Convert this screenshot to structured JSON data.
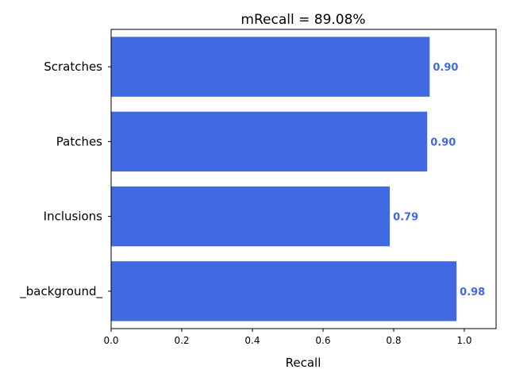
{
  "chart_data": {
    "type": "bar",
    "orientation": "horizontal",
    "title": "mRecall = 89.08%",
    "xlabel": "Recall",
    "ylabel": "",
    "categories": [
      "Scratches",
      "Patches",
      "Inclusions",
      "_background_"
    ],
    "values": [
      0.902,
      0.895,
      0.789,
      0.978
    ],
    "data_labels": [
      "0.90",
      "0.90",
      "0.79",
      "0.98"
    ],
    "xlim": [
      0,
      1.09
    ],
    "xticks": [
      0.0,
      0.2,
      0.4,
      0.6,
      0.8,
      1.0
    ],
    "xtick_labels": [
      "0.0",
      "0.2",
      "0.4",
      "0.6",
      "0.8",
      "1.0"
    ],
    "grid": false,
    "bar_color": "#4169e1",
    "label_color": "#4169e1"
  }
}
